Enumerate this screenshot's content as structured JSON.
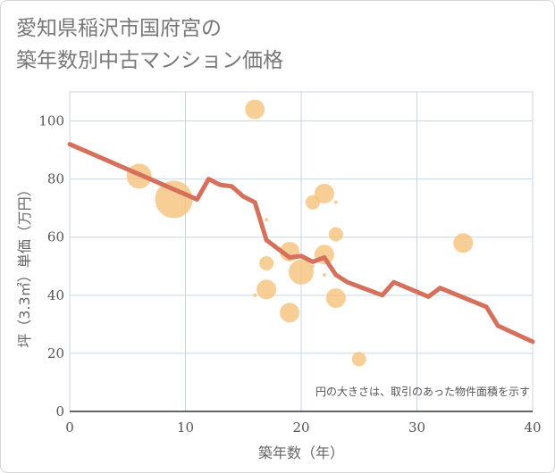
{
  "title_line1": "愛知県稲沢市国府宮の",
  "title_line2": "築年数別中古マンション価格",
  "chart_data": {
    "type": "scatter",
    "xlabel": "築年数（年）",
    "ylabel": "坪（3.3㎡）単価（万円）",
    "xlim": [
      0,
      40
    ],
    "ylim": [
      0,
      110
    ],
    "xticks": [
      0,
      10,
      20,
      30,
      40
    ],
    "yticks": [
      0,
      20,
      40,
      60,
      80,
      100
    ],
    "grid": true,
    "annotation": "円の大きさは、取引のあった物件面積を示す",
    "colors": {
      "bubble": "#f5c27a",
      "line": "#d4705c",
      "grid": "#c7d6e6"
    },
    "bubbles": [
      {
        "x": 6,
        "y": 81,
        "size": 14
      },
      {
        "x": 9,
        "y": 73,
        "size": 21
      },
      {
        "x": 16,
        "y": 104,
        "size": 11
      },
      {
        "x": 16,
        "y": 40,
        "size": 2
      },
      {
        "x": 17,
        "y": 66,
        "size": 2
      },
      {
        "x": 17,
        "y": 51,
        "size": 8
      },
      {
        "x": 17,
        "y": 42,
        "size": 11
      },
      {
        "x": 19,
        "y": 55,
        "size": 11
      },
      {
        "x": 19,
        "y": 34,
        "size": 11
      },
      {
        "x": 20,
        "y": 48,
        "size": 14
      },
      {
        "x": 21,
        "y": 72,
        "size": 8
      },
      {
        "x": 21,
        "y": 50,
        "size": 2
      },
      {
        "x": 22,
        "y": 75,
        "size": 11
      },
      {
        "x": 22,
        "y": 54,
        "size": 11
      },
      {
        "x": 22,
        "y": 47,
        "size": 2
      },
      {
        "x": 23,
        "y": 72,
        "size": 2
      },
      {
        "x": 23,
        "y": 61,
        "size": 8
      },
      {
        "x": 23,
        "y": 39,
        "size": 11
      },
      {
        "x": 25,
        "y": 18,
        "size": 8
      },
      {
        "x": 34,
        "y": 58,
        "size": 11
      }
    ],
    "trend": {
      "x": [
        0,
        11,
        12,
        13,
        14,
        15,
        16,
        17,
        19,
        20,
        21,
        22,
        23,
        24,
        25,
        26,
        27,
        28,
        31,
        32,
        36,
        37,
        40
      ],
      "y": [
        92,
        73,
        80,
        78,
        77.5,
        74,
        72,
        59,
        53,
        53.5,
        51.5,
        53,
        47,
        44.5,
        43,
        41.5,
        40,
        44.5,
        39.5,
        42.5,
        36,
        29.5,
        24
      ]
    }
  }
}
